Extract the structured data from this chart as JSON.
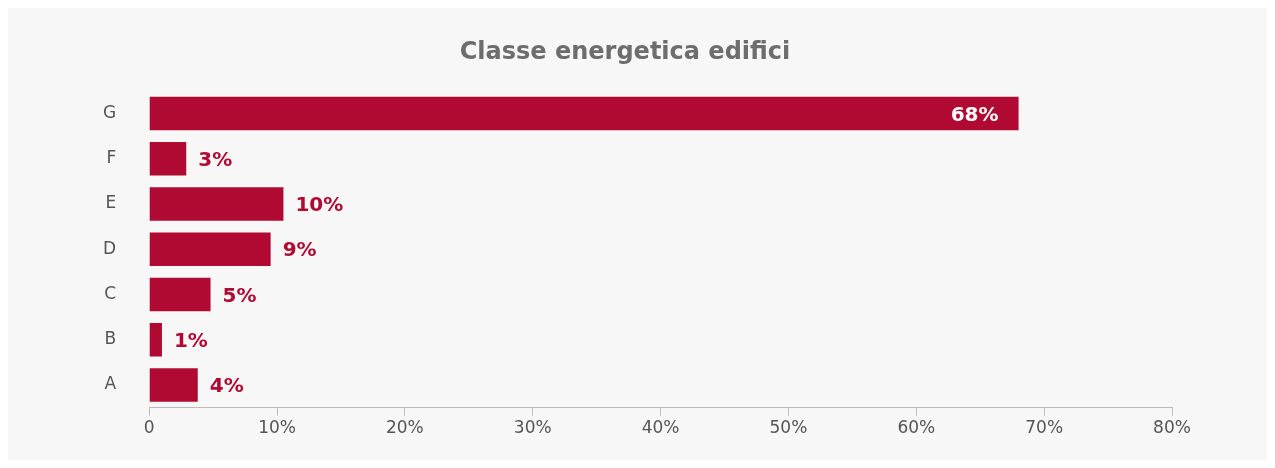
{
  "chart_data": {
    "type": "bar",
    "orientation": "horizontal",
    "title": "Classe energetica edifici",
    "categories": [
      "G",
      "F",
      "E",
      "D",
      "C",
      "B",
      "A"
    ],
    "values": [
      68,
      2.9,
      10.5,
      9.5,
      4.8,
      1.0,
      3.8
    ],
    "value_labels": [
      "68%",
      "3%",
      "10%",
      "9%",
      "5%",
      "1%",
      "4%"
    ],
    "color": "#b00a33",
    "xlim": [
      0,
      80
    ],
    "xticks": [
      {
        "value": 0,
        "label": "0"
      },
      {
        "value": 10,
        "label": "10%"
      },
      {
        "value": 20,
        "label": "20%"
      },
      {
        "value": 30,
        "label": "30%"
      },
      {
        "value": 40,
        "label": "40%"
      },
      {
        "value": 50,
        "label": "50%"
      },
      {
        "value": 60,
        "label": "60%"
      },
      {
        "value": 70,
        "label": "70%"
      },
      {
        "value": 80,
        "label": "80%"
      }
    ],
    "grid": false,
    "legend": false
  }
}
